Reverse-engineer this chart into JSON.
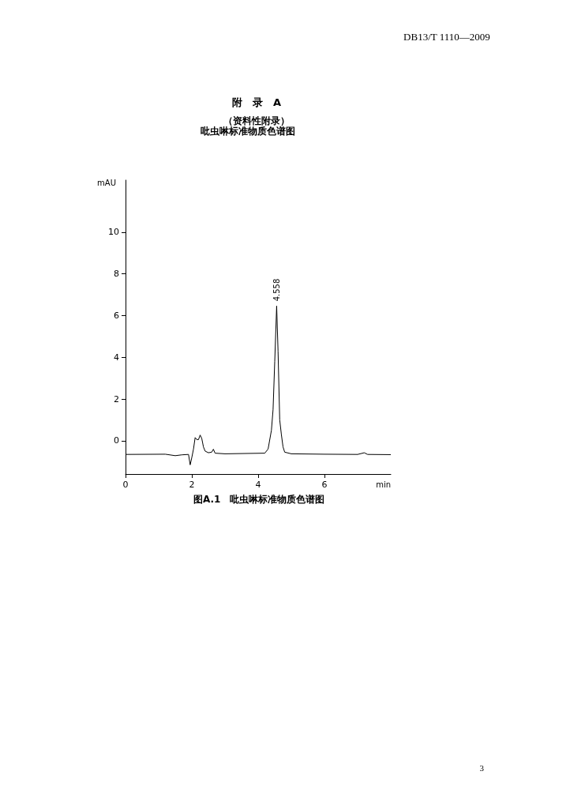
{
  "chart_data": {
    "type": "line",
    "title": "附　录　A",
    "subtitle": "（资料性附录）",
    "xlabel": "min",
    "ylabel": "mAU",
    "x": [
      0,
      1.2,
      1.5,
      1.7,
      1.9,
      1.95,
      2.0,
      2.05,
      2.1,
      2.15,
      2.2,
      2.25,
      2.3,
      2.35,
      2.4,
      2.5,
      2.6,
      2.65,
      2.7,
      3.0,
      4.2,
      4.3,
      4.4,
      4.45,
      4.5,
      4.558,
      4.6,
      4.65,
      4.7,
      4.75,
      4.8,
      5.0,
      6.0,
      7.0,
      7.2,
      7.3,
      8.0
    ],
    "series": [
      {
        "color": "#000000",
        "values": [
          -0.66,
          -0.65,
          -0.72,
          -0.68,
          -0.66,
          -1.16,
          -0.8,
          -0.4,
          0.15,
          0.05,
          0.05,
          0.27,
          0.1,
          -0.3,
          -0.5,
          -0.58,
          -0.55,
          -0.41,
          -0.6,
          -0.63,
          -0.6,
          -0.4,
          0.5,
          1.5,
          3.8,
          6.46,
          4.3,
          1.0,
          0.3,
          -0.3,
          -0.55,
          -0.63,
          -0.65,
          -0.66,
          -0.58,
          -0.66,
          -0.67
        ]
      }
    ],
    "xlim": [
      0,
      8
    ],
    "xticks": [
      0,
      2,
      4,
      6
    ],
    "ylim": [
      -1.6,
      12.5
    ],
    "yticks": [
      0,
      2,
      4,
      6,
      8,
      10
    ],
    "annotations": [
      "DB13/T 1110—2009",
      "图A.1　吡虫啉标准物质色谱图",
      "3",
      "吡虫啉标准物质色谱图",
      {
        "text": "4.558",
        "x": 4.558,
        "y": 6.46
      }
    ],
    "grid": false,
    "marker": "none"
  }
}
